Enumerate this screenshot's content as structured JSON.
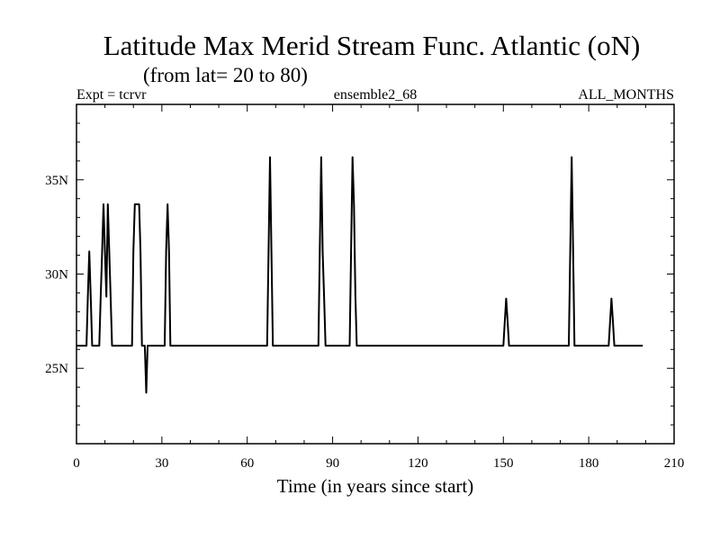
{
  "chart_data": {
    "type": "line",
    "title": "Latitude Max Merid Stream Func. Atlantic (oN)",
    "subtitle": "(from lat= 20 to 80)",
    "header_left": "Expt = tcrvr",
    "header_center": "ensemble2_68",
    "header_right": "ALL_MONTHS",
    "xlabel": "Time (in years since start)",
    "ylabel": "",
    "xlim": [
      0,
      210
    ],
    "ylim": [
      21,
      39
    ],
    "x_ticks": [
      0,
      30,
      60,
      90,
      120,
      150,
      180,
      210
    ],
    "x_tick_labels": [
      "0",
      "30",
      "60",
      "90",
      "120",
      "150",
      "180",
      "210"
    ],
    "y_ticks": [
      25,
      30,
      35
    ],
    "y_tick_labels": [
      "25N",
      "30N",
      "35N"
    ],
    "grid": false,
    "series": [
      {
        "x": [
          0,
          3.5,
          4,
          4.5,
          5,
          5.5,
          6,
          6.5,
          7,
          8,
          8.5,
          9,
          9.5,
          10,
          10.5,
          11,
          11.5,
          12,
          12.5,
          13,
          19.5,
          20,
          20.5,
          21,
          22,
          22.5,
          23,
          24,
          24.5,
          25,
          25.5,
          26,
          31,
          31.5,
          32,
          32.5,
          33,
          33.5,
          67,
          67.5,
          68,
          68.5,
          69,
          69.5,
          85,
          85.5,
          86,
          86.5,
          87,
          87.5,
          88,
          88.5,
          96,
          96.5,
          97,
          97.5,
          98,
          98.5,
          99,
          99.5,
          150,
          150.5,
          151,
          151.5,
          152,
          152.5,
          173,
          173.5,
          174,
          174.5,
          175,
          175.5,
          187,
          187.5,
          188,
          188.5,
          189,
          189.5,
          199
        ],
        "y": [
          26.2,
          26.2,
          28.8,
          31.2,
          28.8,
          26.2,
          26.2,
          26.2,
          26.2,
          26.2,
          28.8,
          31.2,
          33.7,
          31.2,
          28.8,
          33.7,
          31.2,
          28.8,
          26.2,
          26.2,
          26.2,
          31.2,
          33.7,
          33.7,
          33.7,
          31.2,
          26.2,
          26.2,
          23.7,
          26.2,
          26.2,
          26.2,
          26.2,
          31.2,
          33.7,
          31.2,
          26.2,
          26.2,
          26.2,
          31.2,
          36.2,
          31.2,
          26.2,
          26.2,
          26.2,
          31.2,
          36.2,
          31.2,
          28.8,
          26.2,
          26.2,
          26.2,
          26.2,
          31.2,
          36.2,
          33.7,
          28.8,
          26.2,
          26.2,
          26.2,
          26.2,
          27.5,
          28.7,
          27.5,
          26.2,
          26.2,
          26.2,
          31.2,
          36.2,
          31.2,
          26.2,
          26.2,
          26.2,
          27.5,
          28.7,
          27.5,
          26.2,
          26.2,
          26.2
        ]
      }
    ]
  }
}
